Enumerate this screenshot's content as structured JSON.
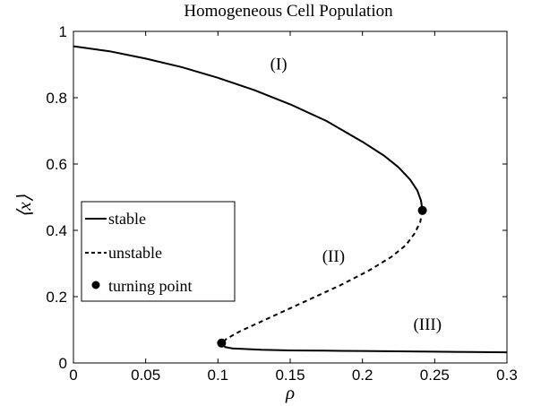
{
  "chart_data": {
    "type": "line",
    "title": "Homogeneous Cell Population",
    "xlabel": "ρ",
    "ylabel": "⟨x⟩",
    "xlim": [
      0,
      0.3
    ],
    "ylim": [
      0,
      1
    ],
    "xticks": [
      0,
      0.05,
      0.1,
      0.15,
      0.2,
      0.25,
      0.3
    ],
    "xtick_labels": [
      "0",
      "0.05",
      "0.1",
      "0.15",
      "0.2",
      "0.25",
      "0.3"
    ],
    "yticks": [
      0,
      0.2,
      0.4,
      0.6,
      0.8,
      1
    ],
    "ytick_labels": [
      "0",
      "0.2",
      "0.4",
      "0.6",
      "0.8",
      "1"
    ],
    "grid": false,
    "legend_position": "left-middle",
    "series": [
      {
        "name": "stable",
        "style": "solid",
        "color": "#000000",
        "segments": [
          [
            [
              0,
              0.955
            ],
            [
              0.025,
              0.94
            ],
            [
              0.05,
              0.918
            ],
            [
              0.075,
              0.892
            ],
            [
              0.1,
              0.86
            ],
            [
              0.125,
              0.823
            ],
            [
              0.15,
              0.78
            ],
            [
              0.175,
              0.73
            ],
            [
              0.2,
              0.667
            ],
            [
              0.215,
              0.625
            ],
            [
              0.225,
              0.59
            ],
            [
              0.233,
              0.553
            ],
            [
              0.238,
              0.52
            ],
            [
              0.2405,
              0.49
            ],
            [
              0.2415,
              0.46
            ]
          ],
          [
            [
              0.1025,
              0.06
            ],
            [
              0.105,
              0.048
            ],
            [
              0.11,
              0.044
            ],
            [
              0.13,
              0.04
            ],
            [
              0.15,
              0.038
            ],
            [
              0.175,
              0.037
            ],
            [
              0.2,
              0.036
            ],
            [
              0.225,
              0.035
            ],
            [
              0.25,
              0.034
            ],
            [
              0.275,
              0.033
            ],
            [
              0.3,
              0.032
            ]
          ]
        ]
      },
      {
        "name": "unstable",
        "style": "dashed",
        "color": "#000000",
        "segments": [
          [
            [
              0.2415,
              0.46
            ],
            [
              0.24,
              0.425
            ],
            [
              0.236,
              0.39
            ],
            [
              0.23,
              0.355
            ],
            [
              0.22,
              0.32
            ],
            [
              0.205,
              0.28
            ],
            [
              0.185,
              0.235
            ],
            [
              0.16,
              0.185
            ],
            [
              0.135,
              0.135
            ],
            [
              0.115,
              0.095
            ],
            [
              0.106,
              0.073
            ],
            [
              0.1025,
              0.06
            ]
          ]
        ]
      },
      {
        "name": "turning point",
        "style": "marker",
        "color": "#000000",
        "points": [
          [
            0.2415,
            0.46
          ],
          [
            0.1025,
            0.06
          ]
        ]
      }
    ],
    "annotations": [
      {
        "text": "(I)",
        "x": 0.142,
        "y": 0.885
      },
      {
        "text": "(II)",
        "x": 0.18,
        "y": 0.305
      },
      {
        "text": "(III)",
        "x": 0.245,
        "y": 0.1
      }
    ]
  }
}
